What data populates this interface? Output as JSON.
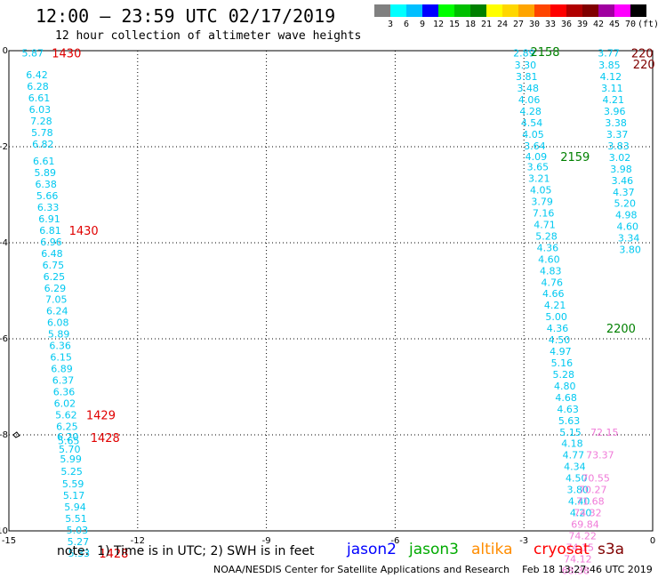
{
  "header": {
    "title": "12:00 — 23:59 UTC 02/17/2019",
    "subtitle": "12 hour collection of altimeter wave heights"
  },
  "color_scale": {
    "unit": "(ft)",
    "bins": [
      {
        "label": "3",
        "color": "#808080"
      },
      {
        "label": "6",
        "color": "#00ffff"
      },
      {
        "label": "9",
        "color": "#00bfff"
      },
      {
        "label": "12",
        "color": "#0000ff"
      },
      {
        "label": "15",
        "color": "#00ff00"
      },
      {
        "label": "18",
        "color": "#00c000"
      },
      {
        "label": "21",
        "color": "#008000"
      },
      {
        "label": "24",
        "color": "#ffff00"
      },
      {
        "label": "27",
        "color": "#ffd700"
      },
      {
        "label": "30",
        "color": "#ffa500"
      },
      {
        "label": "33",
        "color": "#ff4500"
      },
      {
        "label": "36",
        "color": "#ff0000"
      },
      {
        "label": "39",
        "color": "#b00000"
      },
      {
        "label": "42",
        "color": "#800000"
      },
      {
        "label": "45",
        "color": "#a000a0"
      },
      {
        "label": "70",
        "color": "#ff00ff"
      },
      {
        "label": "",
        "color": "#000000"
      }
    ]
  },
  "map": {
    "lon_range": [
      -15,
      0
    ],
    "lat_range": [
      -10,
      0
    ],
    "x_ticks": [
      "-15",
      "-12",
      "-9",
      "-6",
      "-3",
      "0"
    ],
    "y_ticks": [
      "0",
      "-2",
      "-4",
      "-6",
      "-8",
      "-10"
    ],
    "colors": {
      "cyan": "#00c8f0",
      "red": "#e00000",
      "green": "#008000",
      "pink": "#f07ad8",
      "orange": "#ff8c00",
      "darkred": "#800000"
    },
    "tracks": [
      {
        "name": "track-left",
        "color": "cyan",
        "points": [
          {
            "lon": -14.7,
            "lat": -0.05,
            "text": "5.87"
          },
          {
            "lon": -14.6,
            "lat": -0.5,
            "text": "6.42"
          },
          {
            "lon": -14.58,
            "lat": -0.74,
            "text": "6.28"
          },
          {
            "lon": -14.55,
            "lat": -0.98,
            "text": "6.61"
          },
          {
            "lon": -14.53,
            "lat": -1.22,
            "text": "6.03"
          },
          {
            "lon": -14.5,
            "lat": -1.46,
            "text": "7.28"
          },
          {
            "lon": -14.48,
            "lat": -1.7,
            "text": "5.78"
          },
          {
            "lon": -14.46,
            "lat": -1.94,
            "text": "6.82"
          },
          {
            "lon": -14.44,
            "lat": -2.3,
            "text": "6.61"
          },
          {
            "lon": -14.41,
            "lat": -2.54,
            "text": "5.89"
          },
          {
            "lon": -14.39,
            "lat": -2.78,
            "text": "6.38"
          },
          {
            "lon": -14.36,
            "lat": -3.02,
            "text": "5.66"
          },
          {
            "lon": -14.34,
            "lat": -3.26,
            "text": "6.33"
          },
          {
            "lon": -14.31,
            "lat": -3.5,
            "text": "6.91"
          },
          {
            "lon": -14.29,
            "lat": -3.74,
            "text": "6.81"
          },
          {
            "lon": -14.27,
            "lat": -3.98,
            "text": "6.96"
          },
          {
            "lon": -14.25,
            "lat": -4.22,
            "text": "6.48"
          },
          {
            "lon": -14.22,
            "lat": -4.46,
            "text": "6.75"
          },
          {
            "lon": -14.2,
            "lat": -4.7,
            "text": "6.25"
          },
          {
            "lon": -14.18,
            "lat": -4.94,
            "text": "6.29"
          },
          {
            "lon": -14.15,
            "lat": -5.18,
            "text": "7.05"
          },
          {
            "lon": -14.13,
            "lat": -5.42,
            "text": "6.24"
          },
          {
            "lon": -14.11,
            "lat": -5.66,
            "text": "6.08"
          },
          {
            "lon": -14.09,
            "lat": -5.9,
            "text": "5.89"
          },
          {
            "lon": -14.06,
            "lat": -6.14,
            "text": "6.36"
          },
          {
            "lon": -14.04,
            "lat": -6.38,
            "text": "6.15"
          },
          {
            "lon": -14.02,
            "lat": -6.62,
            "text": "6.89"
          },
          {
            "lon": -13.99,
            "lat": -6.86,
            "text": "6.37"
          },
          {
            "lon": -13.97,
            "lat": -7.1,
            "text": "6.36"
          },
          {
            "lon": -13.95,
            "lat": -7.34,
            "text": "6.02"
          },
          {
            "lon": -13.92,
            "lat": -7.58,
            "text": "5.62"
          },
          {
            "lon": -13.9,
            "lat": -7.82,
            "text": "6.25"
          },
          {
            "lon": -13.88,
            "lat": -8.04,
            "text": "6.20"
          },
          {
            "lon": -13.86,
            "lat": -8.12,
            "text": "5.65"
          },
          {
            "lon": -13.84,
            "lat": -8.3,
            "text": "5.70"
          },
          {
            "lon": -13.81,
            "lat": -8.5,
            "text": "5.99"
          },
          {
            "lon": -13.79,
            "lat": -8.76,
            "text": "5.25"
          },
          {
            "lon": -13.76,
            "lat": -9.02,
            "text": "5.59"
          },
          {
            "lon": -13.74,
            "lat": -9.26,
            "text": "5.17"
          },
          {
            "lon": -13.71,
            "lat": -9.5,
            "text": "5.94"
          },
          {
            "lon": -13.69,
            "lat": -9.74,
            "text": "5.51"
          },
          {
            "lon": -13.66,
            "lat": -9.98,
            "text": "5.03"
          },
          {
            "lon": -13.64,
            "lat": -10.22,
            "text": "5.27"
          },
          {
            "lon": -13.62,
            "lat": -10.46,
            "text": "5.33"
          }
        ]
      },
      {
        "name": "track-middle",
        "color": "cyan",
        "points": [
          {
            "lon": -3.25,
            "lat": -0.05,
            "text": "2.89"
          },
          {
            "lon": -3.22,
            "lat": -0.3,
            "text": "3.30"
          },
          {
            "lon": -3.19,
            "lat": -0.54,
            "text": "3.81"
          },
          {
            "lon": -3.16,
            "lat": -0.78,
            "text": "3.48"
          },
          {
            "lon": -3.13,
            "lat": -1.02,
            "text": "4.06"
          },
          {
            "lon": -3.1,
            "lat": -1.26,
            "text": "4.28"
          },
          {
            "lon": -3.07,
            "lat": -1.5,
            "text": "4.54"
          },
          {
            "lon": -3.04,
            "lat": -1.74,
            "text": "4.05"
          },
          {
            "lon": -3.0,
            "lat": -1.98,
            "text": "3.64"
          },
          {
            "lon": -2.97,
            "lat": -2.2,
            "text": "4.09"
          },
          {
            "lon": -2.93,
            "lat": -2.42,
            "text": "3.65"
          },
          {
            "lon": -2.9,
            "lat": -2.66,
            "text": "3.21"
          },
          {
            "lon": -2.86,
            "lat": -2.9,
            "text": "4.05"
          },
          {
            "lon": -2.83,
            "lat": -3.14,
            "text": "3.79"
          },
          {
            "lon": -2.8,
            "lat": -3.38,
            "text": "7.16"
          },
          {
            "lon": -2.77,
            "lat": -3.62,
            "text": "4.71"
          },
          {
            "lon": -2.73,
            "lat": -3.86,
            "text": "5.28"
          },
          {
            "lon": -2.7,
            "lat": -4.1,
            "text": "4.36"
          },
          {
            "lon": -2.67,
            "lat": -4.34,
            "text": "4.60"
          },
          {
            "lon": -2.63,
            "lat": -4.58,
            "text": "4.83"
          },
          {
            "lon": -2.6,
            "lat": -4.82,
            "text": "4.76"
          },
          {
            "lon": -2.57,
            "lat": -5.06,
            "text": "4.66"
          },
          {
            "lon": -2.53,
            "lat": -5.3,
            "text": "4.21"
          },
          {
            "lon": -2.5,
            "lat": -5.54,
            "text": "5.00"
          },
          {
            "lon": -2.47,
            "lat": -5.78,
            "text": "4.36"
          },
          {
            "lon": -2.43,
            "lat": -6.02,
            "text": "4.50"
          },
          {
            "lon": -2.4,
            "lat": -6.26,
            "text": "4.97"
          },
          {
            "lon": -2.37,
            "lat": -6.5,
            "text": "5.16"
          },
          {
            "lon": -2.33,
            "lat": -6.74,
            "text": "5.28"
          },
          {
            "lon": -2.3,
            "lat": -6.98,
            "text": "4.80"
          },
          {
            "lon": -2.27,
            "lat": -7.22,
            "text": "4.68"
          },
          {
            "lon": -2.23,
            "lat": -7.46,
            "text": "4.63"
          },
          {
            "lon": -2.2,
            "lat": -7.7,
            "text": "5.63"
          },
          {
            "lon": -2.17,
            "lat": -7.94,
            "text": "5.15"
          },
          {
            "lon": -2.13,
            "lat": -8.18,
            "text": "4.18"
          },
          {
            "lon": -2.1,
            "lat": -8.42,
            "text": "4.77"
          },
          {
            "lon": -2.07,
            "lat": -8.66,
            "text": "4.34"
          },
          {
            "lon": -2.03,
            "lat": -8.9,
            "text": "4.50"
          },
          {
            "lon": -2.0,
            "lat": -9.14,
            "text": "3.80"
          },
          {
            "lon": -1.97,
            "lat": -9.38,
            "text": "4.40"
          },
          {
            "lon": -1.93,
            "lat": -9.62,
            "text": "4.20"
          }
        ]
      },
      {
        "name": "track-right",
        "color": "cyan",
        "points": [
          {
            "lon": -1.28,
            "lat": -0.05,
            "text": "3.77"
          },
          {
            "lon": -1.26,
            "lat": -0.3,
            "text": "3.85"
          },
          {
            "lon": -1.23,
            "lat": -0.54,
            "text": "4.12"
          },
          {
            "lon": -1.2,
            "lat": -0.78,
            "text": "3.11"
          },
          {
            "lon": -1.17,
            "lat": -1.02,
            "text": "4.21"
          },
          {
            "lon": -1.14,
            "lat": -1.26,
            "text": "3.96"
          },
          {
            "lon": -1.11,
            "lat": -1.5,
            "text": "3.38"
          },
          {
            "lon": -1.08,
            "lat": -1.74,
            "text": "3.37"
          },
          {
            "lon": -1.05,
            "lat": -1.98,
            "text": "3.83"
          },
          {
            "lon": -1.02,
            "lat": -2.22,
            "text": "3.02"
          },
          {
            "lon": -0.99,
            "lat": -2.46,
            "text": "3.98"
          },
          {
            "lon": -0.96,
            "lat": -2.7,
            "text": "3.46"
          },
          {
            "lon": -0.93,
            "lat": -2.94,
            "text": "4.37"
          },
          {
            "lon": -0.9,
            "lat": -3.18,
            "text": "5.20"
          },
          {
            "lon": -0.87,
            "lat": -3.42,
            "text": "4.98"
          },
          {
            "lon": -0.84,
            "lat": -3.66,
            "text": "4.60"
          },
          {
            "lon": -0.81,
            "lat": -3.9,
            "text": "3.34"
          },
          {
            "lon": -0.78,
            "lat": -4.14,
            "text": "3.80"
          }
        ]
      },
      {
        "name": "track-pink",
        "color": "pink",
        "points": [
          {
            "lon": -1.45,
            "lat": -7.94,
            "text": "72.15"
          },
          {
            "lon": -1.55,
            "lat": -8.42,
            "text": "73.37"
          },
          {
            "lon": -1.65,
            "lat": -8.9,
            "text": "70.55"
          },
          {
            "lon": -1.72,
            "lat": -9.14,
            "text": "70.27"
          },
          {
            "lon": -1.78,
            "lat": -9.38,
            "text": "71.68"
          },
          {
            "lon": -1.84,
            "lat": -9.62,
            "text": "74.32"
          },
          {
            "lon": -1.9,
            "lat": -9.86,
            "text": "69.84"
          },
          {
            "lon": -1.96,
            "lat": -10.1,
            "text": "74.22"
          },
          {
            "lon": -2.02,
            "lat": -10.34,
            "text": "74.15"
          },
          {
            "lon": -2.07,
            "lat": -10.58,
            "text": "74.12"
          },
          {
            "lon": -2.12,
            "lat": -10.82,
            "text": "68.38"
          }
        ]
      }
    ],
    "time_labels": [
      {
        "lon": -14.0,
        "lat": -0.05,
        "text": "1430",
        "color": "red"
      },
      {
        "lon": -13.6,
        "lat": -3.74,
        "text": "1430",
        "color": "red"
      },
      {
        "lon": -13.2,
        "lat": -7.58,
        "text": "1429",
        "color": "red"
      },
      {
        "lon": -13.1,
        "lat": -8.06,
        "text": "1428",
        "color": "red"
      },
      {
        "lon": -12.9,
        "lat": -10.46,
        "text": "1428",
        "color": "red"
      },
      {
        "lon": -2.85,
        "lat": -0.02,
        "text": "2158",
        "color": "green"
      },
      {
        "lon": -2.15,
        "lat": -2.2,
        "text": "2159",
        "color": "green"
      },
      {
        "lon": -1.08,
        "lat": -5.78,
        "text": "2200",
        "color": "green"
      },
      {
        "lon": -0.5,
        "lat": -0.05,
        "text": "220",
        "color": "darkred"
      },
      {
        "lon": -0.46,
        "lat": -0.28,
        "text": "220",
        "color": "darkred"
      }
    ]
  },
  "legend": {
    "note": "note:  1) Time is in UTC; 2) SWH is in feet",
    "missions": [
      {
        "name": "jason2",
        "color": "#0000ff"
      },
      {
        "name": "jason3",
        "color": "#00aa00"
      },
      {
        "name": "altika",
        "color": "#ff8c00"
      },
      {
        "name": "cryosat",
        "color": "#ff0000"
      },
      {
        "name": "s3a",
        "color": "#800000"
      }
    ]
  },
  "footer": "NOAA/NESDIS Center for Satellite Applications and Research    Feb 18 13:27:46 UTC 2019"
}
